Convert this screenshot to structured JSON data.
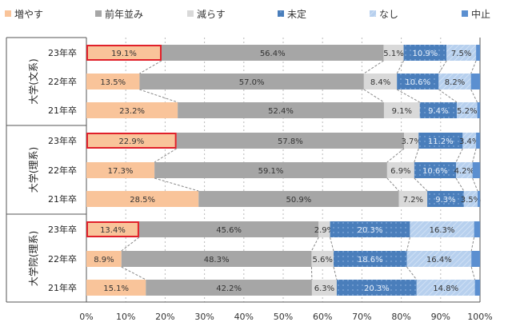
{
  "chart_data": {
    "type": "bar",
    "orientation": "horizontal-stacked-100",
    "legend": [
      "増やす",
      "前年並み",
      "減らす",
      "未定",
      "なし",
      "中止"
    ],
    "legend_position": "top",
    "colors": [
      "#f9c49a",
      "#a6a6a6",
      "#d9d9d9",
      "#4a7ebb",
      "#b7d0ee",
      "#5b8fd0"
    ],
    "highlight_color": "#e0202a",
    "groups": [
      {
        "label": "大学(文系)",
        "rows": [
          {
            "label": "23年卒",
            "values": [
              19.1,
              56.4,
              5.1,
              10.9,
              7.5,
              1.0
            ],
            "highlight": true
          },
          {
            "label": "22年卒",
            "values": [
              13.5,
              57.0,
              8.4,
              10.6,
              8.2,
              2.3
            ]
          },
          {
            "label": "21年卒",
            "values": [
              23.2,
              52.4,
              9.1,
              9.4,
              5.2,
              0.7
            ]
          }
        ]
      },
      {
        "label": "大学(理系)",
        "rows": [
          {
            "label": "23年卒",
            "values": [
              22.9,
              57.8,
              3.7,
              11.2,
              3.4,
              1.0
            ],
            "highlight": true
          },
          {
            "label": "22年卒",
            "values": [
              17.3,
              59.1,
              6.9,
              10.6,
              4.2,
              1.9
            ]
          },
          {
            "label": "21年卒",
            "values": [
              28.5,
              50.9,
              7.2,
              9.3,
              3.5,
              0.6
            ]
          }
        ]
      },
      {
        "label": "大学院(理系)",
        "rows": [
          {
            "label": "23年卒",
            "values": [
              13.4,
              45.6,
              2.9,
              20.3,
              16.3,
              1.5
            ],
            "highlight": true
          },
          {
            "label": "22年卒",
            "values": [
              8.9,
              48.3,
              5.6,
              18.6,
              16.4,
              2.2
            ]
          },
          {
            "label": "21年卒",
            "values": [
              15.1,
              42.2,
              6.3,
              20.3,
              14.8,
              1.3
            ]
          }
        ]
      }
    ],
    "labeled_series": [
      0,
      1,
      2,
      3,
      4
    ],
    "xticks": [
      "0%",
      "10%",
      "20%",
      "30%",
      "40%",
      "50%",
      "60%",
      "70%",
      "80%",
      "90%",
      "100%"
    ],
    "xlim": [
      0,
      100
    ],
    "grid": true
  }
}
